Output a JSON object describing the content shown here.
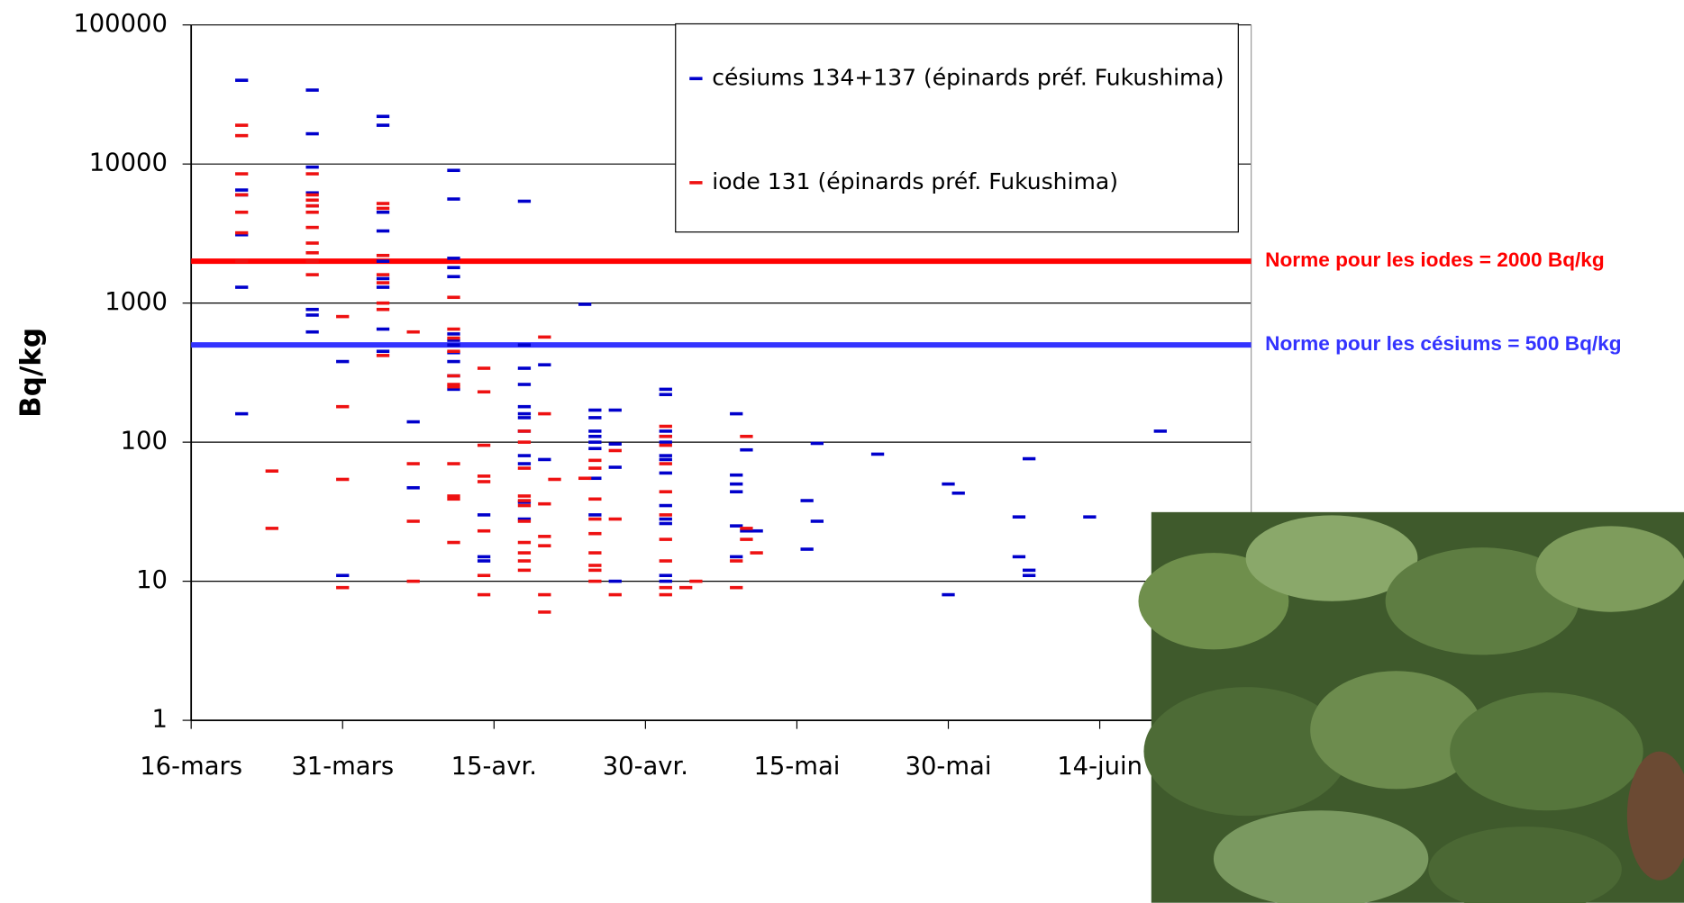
{
  "chart_data": {
    "type": "scatter",
    "y_label": "Bq/kg",
    "yscale": "log",
    "ylim": [
      1,
      100000
    ],
    "yticks": [
      1,
      10,
      100,
      1000,
      10000,
      100000
    ],
    "xlim": [
      "16-mars",
      "29-juin"
    ],
    "xticks": [
      "16-mars",
      "31-mars",
      "15-avr.",
      "30-avr.",
      "15-mai",
      "30-mai",
      "14-juin"
    ],
    "grid": true,
    "legend": "top-right",
    "series": [
      {
        "name": "césiums 134+137 (épinards préf. Fukushima)",
        "color": "#0000cc",
        "x": [
          "21-mars",
          "21-mars",
          "21-mars",
          "21-mars",
          "21-mars",
          "21-mars",
          "28-mars",
          "28-mars",
          "28-mars",
          "28-mars",
          "28-mars",
          "28-mars",
          "28-mars",
          "28-mars",
          "31-mars",
          "31-mars",
          "4-avr.",
          "4-avr.",
          "4-avr.",
          "4-avr.",
          "4-avr.",
          "4-avr.",
          "4-avr.",
          "4-avr.",
          "4-avr.",
          "7-avr.",
          "7-avr.",
          "11-avr.",
          "11-avr.",
          "11-avr.",
          "11-avr.",
          "11-avr.",
          "11-avr.",
          "11-avr.",
          "11-avr.",
          "11-avr.",
          "11-avr.",
          "11-avr.",
          "11-avr.",
          "14-avr.",
          "14-avr.",
          "14-avr.",
          "18-avr.",
          "18-avr.",
          "18-avr.",
          "18-avr.",
          "18-avr.",
          "18-avr.",
          "18-avr.",
          "18-avr.",
          "18-avr.",
          "18-avr.",
          "18-avr.",
          "18-avr.",
          "20-avr.",
          "20-avr.",
          "24-avr.",
          "25-avr.",
          "25-avr.",
          "25-avr.",
          "25-avr.",
          "25-avr.",
          "25-avr.",
          "25-avr.",
          "25-avr.",
          "27-avr.",
          "27-avr.",
          "27-avr.",
          "27-avr.",
          "2-mai",
          "2-mai",
          "2-mai",
          "2-mai",
          "2-mai",
          "2-mai",
          "2-mai",
          "2-mai",
          "2-mai",
          "2-mai",
          "2-mai",
          "2-mai",
          "2-mai",
          "9-mai",
          "9-mai",
          "9-mai",
          "9-mai",
          "9-mai",
          "9-mai",
          "10-mai",
          "10-mai",
          "11-mai",
          "16-mai",
          "16-mai",
          "17-mai",
          "17-mai",
          "23-mai",
          "30-mai",
          "30-mai",
          "31-mai",
          "6-juin",
          "6-juin",
          "7-juin",
          "7-juin",
          "7-juin",
          "13-juin",
          "20-juin"
        ],
        "values": [
          40000,
          6500,
          6000,
          3100,
          1300,
          160,
          34000,
          16500,
          9500,
          6200,
          5000,
          900,
          820,
          620,
          380,
          11,
          22000,
          19000,
          4500,
          3300,
          2000,
          1500,
          1300,
          650,
          450,
          140,
          47,
          9000,
          5600,
          2100,
          1800,
          1550,
          600,
          540,
          500,
          440,
          380,
          300,
          240,
          30,
          15,
          14,
          5400,
          500,
          340,
          260,
          180,
          160,
          150,
          120,
          80,
          70,
          37,
          28,
          360,
          75,
          980,
          170,
          150,
          120,
          110,
          100,
          90,
          55,
          30,
          170,
          97,
          66,
          10,
          240,
          220,
          120,
          110,
          100,
          80,
          75,
          60,
          35,
          28,
          26,
          11,
          10,
          160,
          58,
          50,
          44,
          25,
          15,
          88,
          23,
          23,
          38,
          17,
          98,
          27,
          82,
          50,
          8,
          43,
          29,
          15,
          76,
          12,
          11,
          29,
          120
        ]
      },
      {
        "name": "iode 131 (épinards préf. Fukushima)",
        "color": "#ee1111",
        "x": [
          "21-mars",
          "21-mars",
          "21-mars",
          "21-mars",
          "21-mars",
          "21-mars",
          "21-mars",
          "24-mars",
          "24-mars",
          "28-mars",
          "28-mars",
          "28-mars",
          "28-mars",
          "28-mars",
          "28-mars",
          "28-mars",
          "28-mars",
          "28-mars",
          "28-mars",
          "31-mars",
          "31-mars",
          "31-mars",
          "31-mars",
          "4-avr.",
          "4-avr.",
          "4-avr.",
          "4-avr.",
          "4-avr.",
          "4-avr.",
          "4-avr.",
          "4-avr.",
          "7-avr.",
          "7-avr.",
          "7-avr.",
          "7-avr.",
          "11-avr.",
          "11-avr.",
          "11-avr.",
          "11-avr.",
          "11-avr.",
          "11-avr.",
          "11-avr.",
          "11-avr.",
          "11-avr.",
          "11-avr.",
          "11-avr.",
          "14-avr.",
          "14-avr.",
          "14-avr.",
          "14-avr.",
          "14-avr.",
          "14-avr.",
          "14-avr.",
          "14-avr.",
          "18-avr.",
          "18-avr.",
          "18-avr.",
          "18-avr.",
          "18-avr.",
          "18-avr.",
          "18-avr.",
          "18-avr.",
          "18-avr.",
          "18-avr.",
          "18-avr.",
          "20-avr.",
          "20-avr.",
          "20-avr.",
          "20-avr.",
          "20-avr.",
          "20-avr.",
          "20-avr.",
          "21-avr.",
          "24-avr.",
          "25-avr.",
          "25-avr.",
          "25-avr.",
          "25-avr.",
          "25-avr.",
          "25-avr.",
          "25-avr.",
          "25-avr.",
          "25-avr.",
          "27-avr.",
          "27-avr.",
          "27-avr.",
          "2-mai",
          "2-mai",
          "2-mai",
          "2-mai",
          "2-mai",
          "2-mai",
          "2-mai",
          "2-mai",
          "2-mai",
          "2-mai",
          "4-mai",
          "5-mai",
          "9-mai",
          "9-mai",
          "10-mai",
          "10-mai",
          "10-mai",
          "11-mai"
        ],
        "values": [
          19000,
          16000,
          8500,
          6000,
          4500,
          3200,
          2000,
          62,
          24,
          8500,
          6000,
          5500,
          5000,
          4500,
          3500,
          2700,
          2300,
          2000,
          1600,
          800,
          180,
          54,
          9,
          5200,
          4800,
          2200,
          1600,
          1400,
          1000,
          900,
          420,
          620,
          70,
          27,
          10,
          1100,
          650,
          560,
          450,
          300,
          260,
          250,
          70,
          41,
          39,
          19,
          340,
          230,
          95,
          57,
          52,
          23,
          11,
          8,
          120,
          100,
          65,
          41,
          38,
          35,
          27,
          19,
          16,
          14,
          12,
          570,
          160,
          36,
          21,
          18,
          8,
          6,
          54,
          55,
          74,
          65,
          39,
          28,
          22,
          16,
          13,
          12,
          10,
          87,
          28,
          8,
          130,
          110,
          95,
          70,
          44,
          30,
          20,
          14,
          9,
          8,
          9,
          10,
          14,
          9,
          110,
          24,
          20,
          16
        ]
      }
    ],
    "reference_lines": [
      {
        "value": 2000,
        "label": "Norme pour les iodes = 2000 Bq/kg",
        "color": "#ff0000"
      },
      {
        "value": 500,
        "label": "Norme pour les césiums = 500 Bq/kg",
        "color": "#3333ff"
      }
    ]
  }
}
